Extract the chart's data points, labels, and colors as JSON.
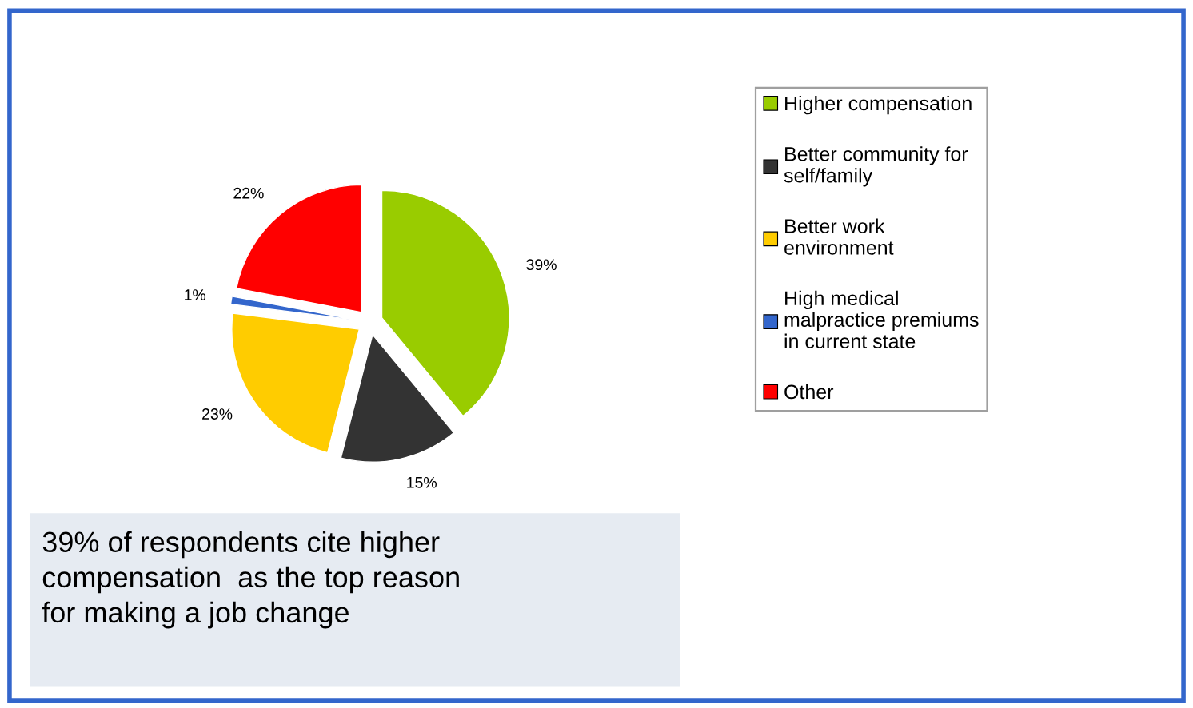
{
  "chart_data": {
    "type": "pie",
    "categories": [
      "Higher compensation",
      "Better community for\nself/family",
      "Better work\nenvironment",
      "High medical\nmalpractice premiums\nin current state",
      "Other"
    ],
    "values": [
      39,
      15,
      23,
      1,
      22
    ],
    "value_labels": [
      "39%",
      "15%",
      "23%",
      "1%",
      "22%"
    ],
    "colors": [
      "#99cc00",
      "#333333",
      "#ffcc00",
      "#3366cc",
      "#ff0000"
    ],
    "legend": "right",
    "annotations": [
      "39% of respondents cite higher\ncompensation  as the top reason\nfor making a job change"
    ]
  }
}
